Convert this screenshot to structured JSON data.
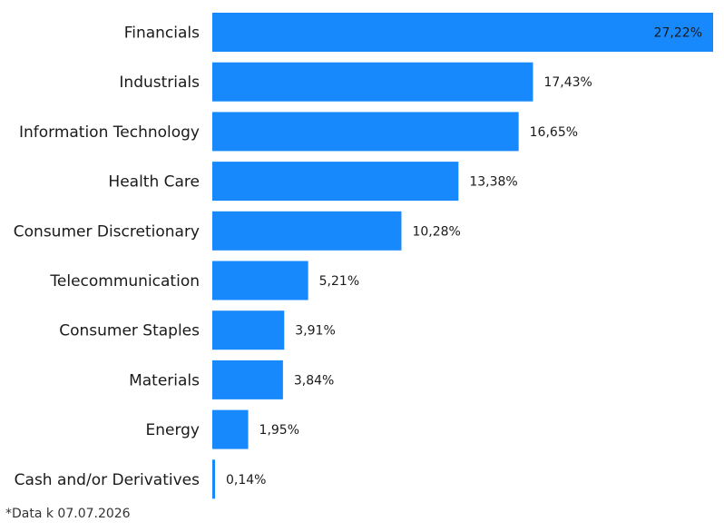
{
  "chart_data": {
    "type": "bar",
    "orientation": "horizontal",
    "categories": [
      "Financials",
      "Industrials",
      "Information Technology",
      "Health Care",
      "Consumer Discretionary",
      "Telecommunication",
      "Consumer Staples",
      "Materials",
      "Energy",
      "Cash and/or Derivatives"
    ],
    "values": [
      27.22,
      17.43,
      16.65,
      13.38,
      10.28,
      5.21,
      3.91,
      3.84,
      1.95,
      0.14
    ],
    "value_labels": [
      "27,22%",
      "17,43%",
      "16,65%",
      "13,38%",
      "10,28%",
      "5,21%",
      "3,91%",
      "3,84%",
      "1,95%",
      "0,14%"
    ],
    "xlim": [
      0,
      27.22
    ],
    "grid": false,
    "legend": "none",
    "bar_color": "#1789fc"
  },
  "footnote": "*Data k 07.07.2026"
}
